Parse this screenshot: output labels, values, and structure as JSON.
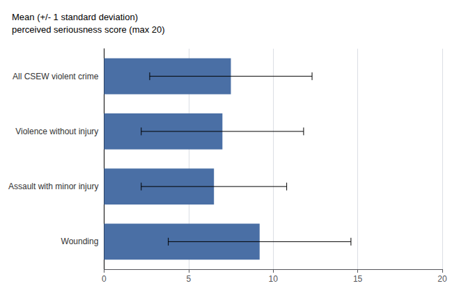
{
  "chart_data": {
    "type": "bar",
    "orientation": "horizontal",
    "title": "Mean (+/- 1 standard deviation)\nperceived seriousness score (max 20)",
    "categories": [
      "Wounding",
      "Assault with minor injury",
      "Violence without injury",
      "All CSEW violent crime"
    ],
    "values": [
      9.2,
      6.5,
      7.0,
      7.5
    ],
    "errors_low": [
      3.8,
      2.2,
      2.2,
      2.7
    ],
    "errors_high": [
      14.6,
      10.8,
      11.8,
      12.3
    ],
    "color": "#4a6fa5",
    "xlim": [
      0,
      20
    ],
    "xticks": [
      0,
      5,
      10,
      15,
      20
    ],
    "grid": true
  }
}
